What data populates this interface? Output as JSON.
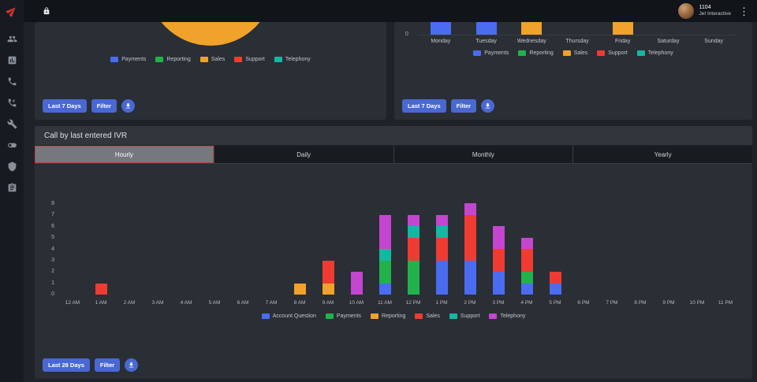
{
  "topbar": {
    "user_id": "1104",
    "company": "Jet Interactive"
  },
  "sidebar": {
    "icons": [
      "jet-logo",
      "users",
      "bar-chart",
      "phone",
      "phone-callback",
      "wrench",
      "toggle",
      "shield",
      "report"
    ]
  },
  "colors": {
    "accent_red": "#d8372c",
    "button_blue": "#4968d2",
    "card_bg": "#2a2e35",
    "topbar_bg": "#111419"
  },
  "panels": {
    "pie": {
      "buttons": {
        "range": "Last 7 Days",
        "filter": "Filter"
      }
    },
    "week": {
      "buttons": {
        "range": "Last 7 Days",
        "filter": "Filter"
      }
    },
    "ivr": {
      "title": "Call by last entered IVR",
      "tabs": [
        {
          "label": "Hourly",
          "active": true
        },
        {
          "label": "Daily",
          "active": false
        },
        {
          "label": "Monthly",
          "active": false
        },
        {
          "label": "Yearly",
          "active": false
        }
      ],
      "buttons": {
        "range": "Last 28 Days",
        "filter": "Filter"
      }
    }
  },
  "chart_data": [
    {
      "id": "calls-by-ivr-pie",
      "type": "pie",
      "note": "panel scrolled; only bottom arc of a large amber slice visible",
      "visible_slice": {
        "label": "Sales",
        "color": "#f0a22a"
      },
      "legend": [
        {
          "label": "Payments",
          "color": "#4a6cf0"
        },
        {
          "label": "Reporting",
          "color": "#22b24c"
        },
        {
          "label": "Sales",
          "color": "#f0a22a"
        },
        {
          "label": "Support",
          "color": "#ef3b32"
        },
        {
          "label": "Telephony",
          "color": "#14b8a1"
        }
      ]
    },
    {
      "id": "calls-by-weekday",
      "type": "bar",
      "categories": [
        "Monday",
        "Tuesday",
        "Wednesday",
        "Thursday",
        "Friday",
        "Saturday",
        "Sunday"
      ],
      "y_ticks": [
        "0"
      ],
      "note": "panel scrolled; bar tops cut off, values not visible",
      "visible_bars": [
        {
          "day": "Monday",
          "series": "Payments",
          "color": "#4a6cf0",
          "cut_off": true
        },
        {
          "day": "Tuesday",
          "series": "Payments",
          "color": "#4a6cf0",
          "cut_off": true
        },
        {
          "day": "Wednesday",
          "series": "Sales",
          "color": "#f0a22a",
          "cut_off": true
        },
        {
          "day": "Friday",
          "series": "Sales",
          "color": "#f0a22a",
          "cut_off": true
        }
      ],
      "legend": [
        {
          "label": "Payments",
          "color": "#4a6cf0"
        },
        {
          "label": "Reporting",
          "color": "#22b24c"
        },
        {
          "label": "Sales",
          "color": "#f0a22a"
        },
        {
          "label": "Support",
          "color": "#ef3b32"
        },
        {
          "label": "Telephony",
          "color": "#14b8a1"
        }
      ]
    },
    {
      "id": "calls-by-hour",
      "type": "stacked_bar",
      "title": "Call by last entered IVR",
      "categories": [
        "12 AM",
        "1 AM",
        "2 AM",
        "3 AM",
        "4 AM",
        "5 AM",
        "6 AM",
        "7 AM",
        "8 AM",
        "9 AM",
        "10 AM",
        "11 AM",
        "12 PM",
        "1 PM",
        "2 PM",
        "3 PM",
        "4 PM",
        "5 PM",
        "6 PM",
        "7 PM",
        "8 PM",
        "9 PM",
        "10 PM",
        "11 PM"
      ],
      "ylim": [
        0,
        8
      ],
      "y_ticks": [
        0,
        1,
        2,
        3,
        4,
        5,
        6,
        7,
        8
      ],
      "series": [
        {
          "name": "Account Question",
          "color": "#4a6cf0",
          "values": [
            0,
            0,
            0,
            0,
            0,
            0,
            0,
            0,
            0,
            0,
            0,
            1,
            0,
            3,
            3,
            2,
            1,
            1,
            0,
            0,
            0,
            0,
            0,
            0
          ]
        },
        {
          "name": "Payments",
          "color": "#22b24c",
          "values": [
            0,
            0,
            0,
            0,
            0,
            0,
            0,
            0,
            0,
            0,
            0,
            2,
            3,
            0,
            0,
            0,
            1,
            0,
            0,
            0,
            0,
            0,
            0,
            0
          ]
        },
        {
          "name": "Reporting",
          "color": "#f0a22a",
          "values": [
            0,
            0,
            0,
            0,
            0,
            0,
            0,
            0,
            1,
            1,
            0,
            0,
            0,
            0,
            0,
            0,
            0,
            0,
            0,
            0,
            0,
            0,
            0,
            0
          ]
        },
        {
          "name": "Sales",
          "color": "#ef3b32",
          "values": [
            0,
            1,
            0,
            0,
            0,
            0,
            0,
            0,
            0,
            2,
            0,
            0,
            2,
            2,
            4,
            2,
            2,
            1,
            0,
            0,
            0,
            0,
            0,
            0
          ]
        },
        {
          "name": "Support",
          "color": "#14b8a1",
          "values": [
            0,
            0,
            0,
            0,
            0,
            0,
            0,
            0,
            0,
            0,
            0,
            1,
            1,
            1,
            0,
            0,
            0,
            0,
            0,
            0,
            0,
            0,
            0,
            0
          ]
        },
        {
          "name": "Telephony",
          "color": "#c445cf",
          "values": [
            0,
            0,
            0,
            0,
            0,
            0,
            0,
            0,
            0,
            0,
            2,
            3,
            1,
            1,
            1,
            2,
            1,
            0,
            0,
            0,
            0,
            0,
            0,
            0
          ]
        }
      ]
    }
  ]
}
